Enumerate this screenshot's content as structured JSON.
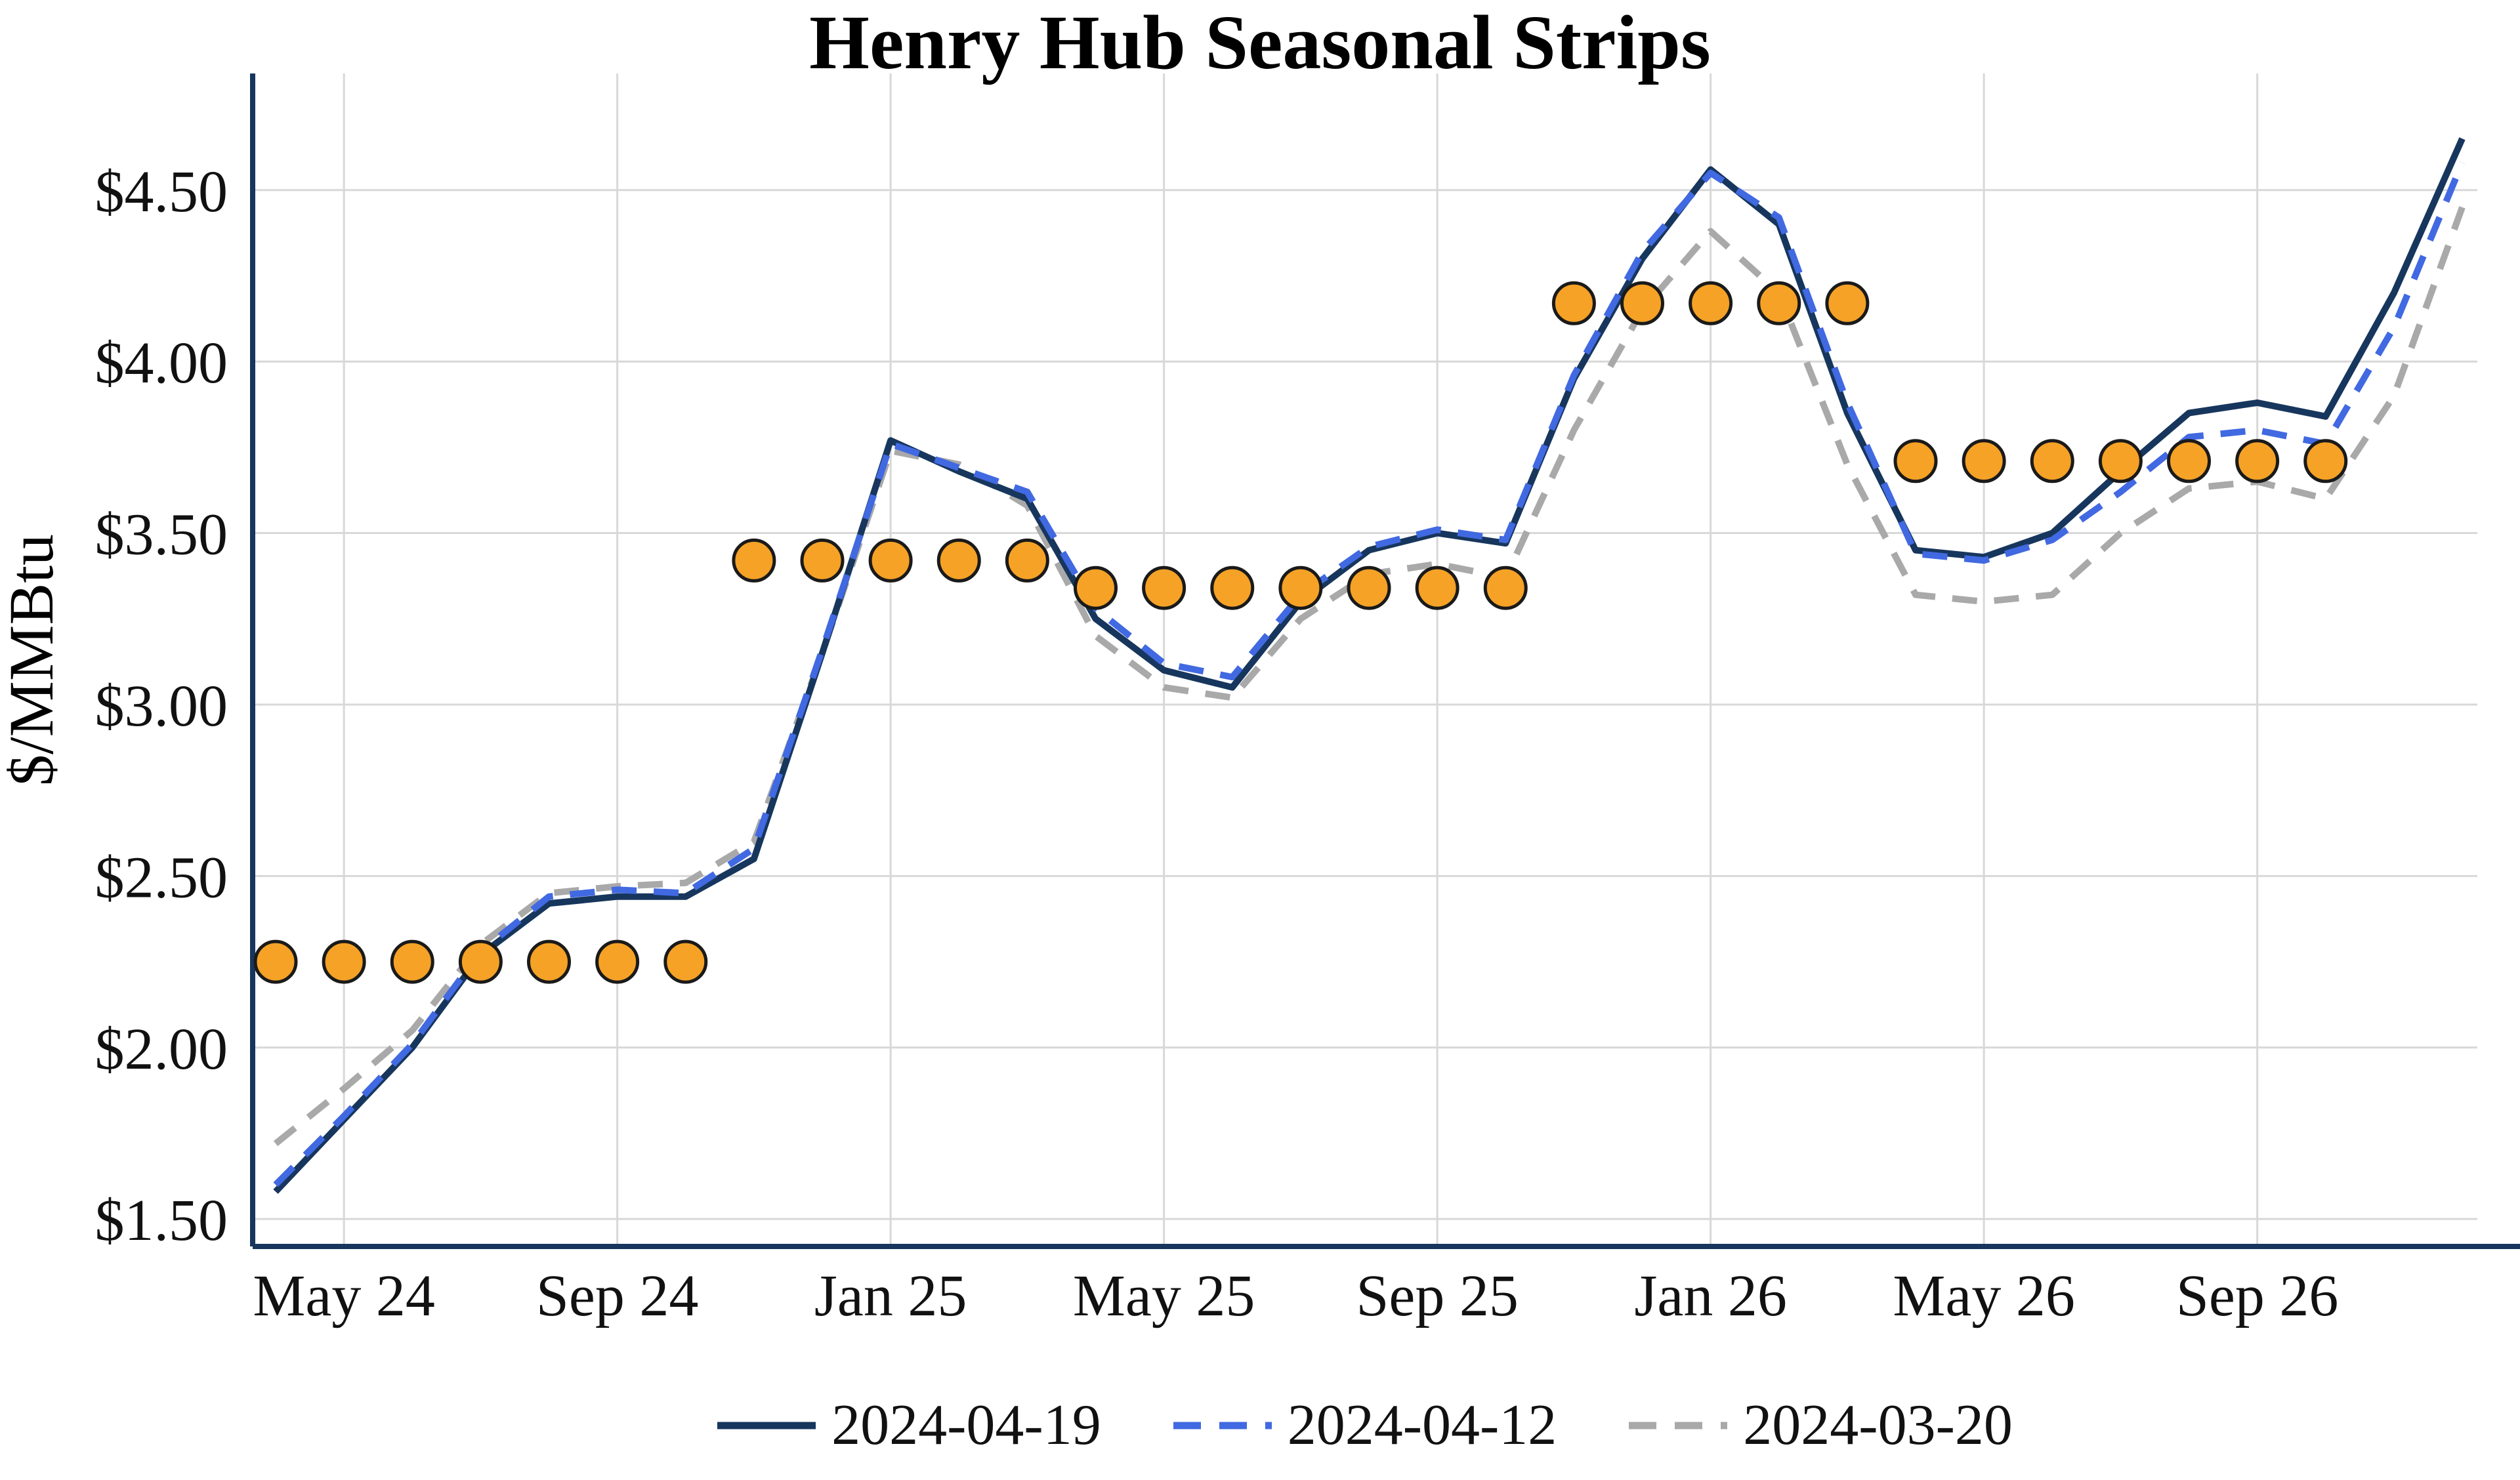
{
  "chart_data": {
    "type": "line",
    "title": "Henry Hub Seasonal Strips",
    "ylabel": "$/MMBtu",
    "xlabel": "",
    "grid": true,
    "legend_position": "bottom",
    "ylim": [
      1.42,
      4.84
    ],
    "x_months": [
      "2024-04",
      "2024-05",
      "2024-06",
      "2024-07",
      "2024-08",
      "2024-09",
      "2024-10",
      "2024-11",
      "2024-12",
      "2025-01",
      "2025-02",
      "2025-03",
      "2025-04",
      "2025-05",
      "2025-06",
      "2025-07",
      "2025-08",
      "2025-09",
      "2025-10",
      "2025-11",
      "2025-12",
      "2026-01",
      "2026-02",
      "2026-03",
      "2026-04",
      "2026-05",
      "2026-06",
      "2026-07",
      "2026-08",
      "2026-09",
      "2026-10",
      "2026-11",
      "2026-12"
    ],
    "x_ticks": [
      {
        "index": 1,
        "label": "May 24"
      },
      {
        "index": 5,
        "label": "Sep 24"
      },
      {
        "index": 9,
        "label": "Jan 25"
      },
      {
        "index": 13,
        "label": "May 25"
      },
      {
        "index": 17,
        "label": "Sep 25"
      },
      {
        "index": 21,
        "label": "Jan 26"
      },
      {
        "index": 25,
        "label": "May 26"
      },
      {
        "index": 29,
        "label": "Sep 26"
      }
    ],
    "y_ticks": [
      {
        "value": 1.5,
        "label": "$1.50"
      },
      {
        "value": 2.0,
        "label": "$2.00"
      },
      {
        "value": 2.5,
        "label": "$2.50"
      },
      {
        "value": 3.0,
        "label": "$3.00"
      },
      {
        "value": 3.5,
        "label": "$3.50"
      },
      {
        "value": 4.0,
        "label": "$4.00"
      },
      {
        "value": 4.5,
        "label": "$4.50"
      }
    ],
    "series": [
      {
        "name": "2024-04-19",
        "style": "solid",
        "color": "#17365d",
        "values": [
          1.58,
          1.79,
          2.0,
          2.27,
          2.42,
          2.44,
          2.44,
          2.55,
          3.15,
          3.77,
          3.68,
          3.6,
          3.25,
          3.1,
          3.05,
          3.3,
          3.45,
          3.5,
          3.47,
          3.95,
          4.3,
          4.56,
          4.4,
          3.85,
          3.45,
          3.43,
          3.5,
          3.68,
          3.85,
          3.88,
          3.84,
          4.2,
          4.65
        ]
      },
      {
        "name": "2024-04-12",
        "style": "dashed",
        "color": "#4169e1",
        "values": [
          1.6,
          1.8,
          2.01,
          2.28,
          2.44,
          2.46,
          2.45,
          2.58,
          3.16,
          3.76,
          3.69,
          3.62,
          3.28,
          3.12,
          3.08,
          3.32,
          3.46,
          3.51,
          3.48,
          3.96,
          4.32,
          4.55,
          4.42,
          3.88,
          3.44,
          3.42,
          3.48,
          3.62,
          3.78,
          3.8,
          3.76,
          4.1,
          4.58
        ]
      },
      {
        "name": "2024-03-20",
        "style": "dashed",
        "color": "#a9a9a9",
        "values": [
          1.72,
          1.88,
          2.05,
          2.3,
          2.45,
          2.47,
          2.48,
          2.6,
          3.15,
          3.74,
          3.7,
          3.58,
          3.2,
          3.05,
          3.02,
          3.25,
          3.38,
          3.41,
          3.37,
          3.8,
          4.15,
          4.38,
          4.2,
          3.7,
          3.32,
          3.3,
          3.32,
          3.5,
          3.63,
          3.65,
          3.6,
          3.9,
          4.45
        ]
      }
    ],
    "strip_markers": {
      "color": "#f5a226",
      "edge_color": "#1a1a1a",
      "strips": [
        {
          "start_month": "2024-04",
          "end_month": "2024-10",
          "value": 2.25
        },
        {
          "start_month": "2024-11",
          "end_month": "2025-03",
          "value": 3.42
        },
        {
          "start_month": "2025-04",
          "end_month": "2025-10",
          "value": 3.34
        },
        {
          "start_month": "2025-11",
          "end_month": "2026-03",
          "value": 4.17
        },
        {
          "start_month": "2026-04",
          "end_month": "2026-10",
          "value": 3.71
        }
      ]
    },
    "colors": {
      "axis": "#17365d",
      "gridline": "#d8d8d8",
      "tick_label": "#111111",
      "background": "#ffffff"
    }
  }
}
